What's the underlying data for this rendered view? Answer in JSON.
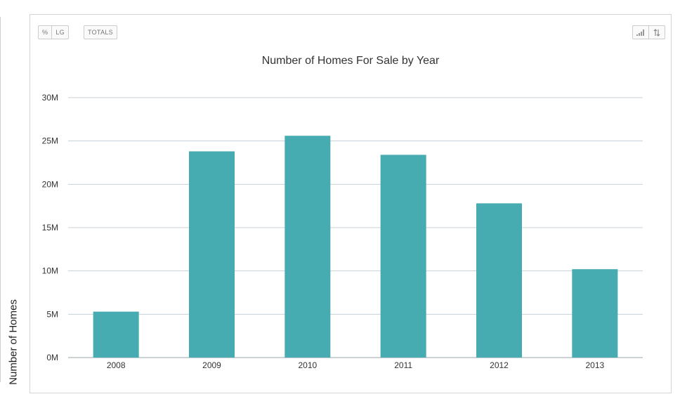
{
  "toolbar": {
    "percent_label": "%",
    "lg_label": "LG",
    "totals_label": "TOTALS",
    "left_icons": [
      "percent-icon"
    ],
    "right_icons": [
      "bar-signal-icon",
      "sort-icon"
    ]
  },
  "colors": {
    "bar": "#47abb2",
    "grid": "#c8d0d6",
    "axis": "#9aa3a8"
  },
  "chart_data": {
    "type": "bar",
    "title": "Number of Homes For Sale by Year",
    "xlabel": "",
    "ylabel": "Number of Homes",
    "categories": [
      "2008",
      "2009",
      "2010",
      "2011",
      "2012",
      "2013"
    ],
    "values": [
      5300000,
      23800000,
      25600000,
      23400000,
      17800000,
      10200000
    ],
    "ylim": [
      0,
      30000000
    ],
    "yticks": [
      0,
      5000000,
      10000000,
      15000000,
      20000000,
      25000000,
      30000000
    ],
    "ytick_labels": [
      "0M",
      "5M",
      "10M",
      "15M",
      "20M",
      "25M",
      "30M"
    ],
    "grid": true,
    "legend": "none"
  }
}
